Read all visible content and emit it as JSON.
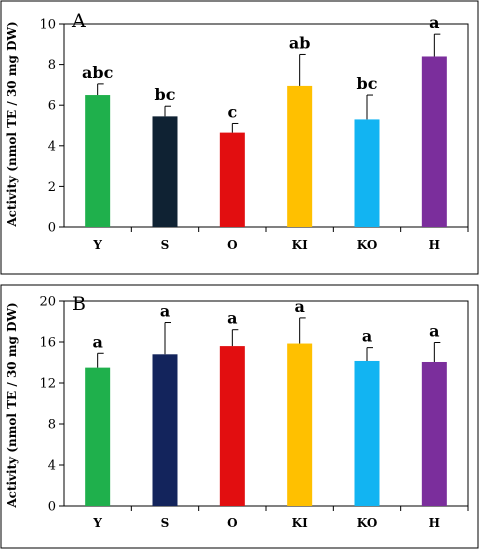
{
  "chart_data": [
    {
      "type": "bar",
      "panel_label": "A",
      "ylabel": "Activity (nmol TE / 30 mg DW)",
      "xlabel": "",
      "ylim": [
        0,
        10
      ],
      "yticks": [
        0,
        2,
        4,
        6,
        8,
        10
      ],
      "categories": [
        "Y",
        "S",
        "O",
        "KI",
        "KO",
        "H"
      ],
      "values": [
        6.5,
        5.45,
        4.65,
        6.95,
        5.3,
        8.4
      ],
      "errors": [
        0.55,
        0.5,
        0.45,
        1.55,
        1.2,
        1.1
      ],
      "significance": [
        "abc",
        "bc",
        "c",
        "ab",
        "bc",
        "a"
      ],
      "colors": [
        "#1fb04c",
        "#0f2233",
        "#e20e10",
        "#ffc000",
        "#12b4f2",
        "#7b2e9c"
      ],
      "grid": false,
      "legend": "none"
    },
    {
      "type": "bar",
      "panel_label": "B",
      "ylabel": "Activity (nmol TE / 30 mg DW)",
      "xlabel": "",
      "ylim": [
        0,
        20
      ],
      "yticks": [
        0,
        4,
        8,
        12,
        16,
        20
      ],
      "categories": [
        "Y",
        "S",
        "O",
        "KI",
        "KO",
        "H"
      ],
      "values": [
        13.5,
        14.8,
        15.6,
        15.85,
        14.15,
        14.05
      ],
      "errors": [
        1.4,
        3.1,
        1.6,
        2.5,
        1.3,
        1.9
      ],
      "significance": [
        "a",
        "a",
        "a",
        "a",
        "a",
        "a"
      ],
      "colors": [
        "#1fb04c",
        "#13245c",
        "#e20e10",
        "#ffc000",
        "#12b4f2",
        "#7b2e9c"
      ],
      "grid": false,
      "legend": "none"
    }
  ]
}
